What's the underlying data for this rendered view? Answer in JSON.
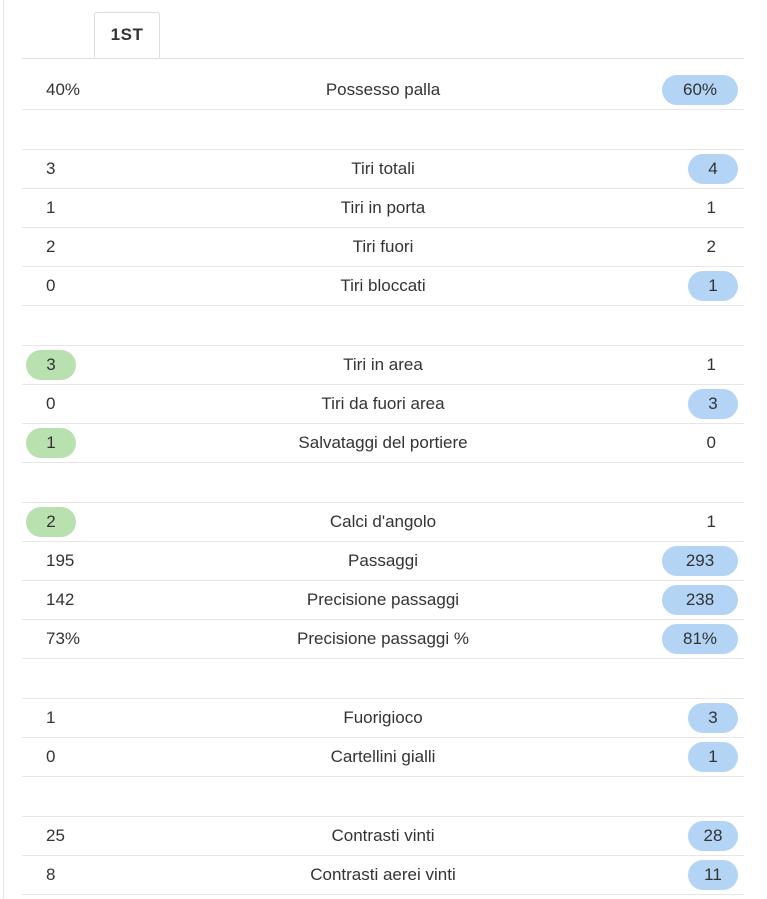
{
  "tabs": {
    "active_label": "1ST"
  },
  "colors": {
    "home_highlight": "#b9e1b0",
    "away_highlight": "#b3d4f5",
    "divider": "#e6e6e6",
    "text": "#333333"
  },
  "groups": [
    {
      "rows": [
        {
          "label": "Possesso palla",
          "home": "40%",
          "away": "60%",
          "highlight": "away"
        }
      ]
    },
    {
      "rows": [
        {
          "label": "Tiri totali",
          "home": "3",
          "away": "4",
          "highlight": "away"
        },
        {
          "label": "Tiri in porta",
          "home": "1",
          "away": "1",
          "highlight": "none"
        },
        {
          "label": "Tiri fuori",
          "home": "2",
          "away": "2",
          "highlight": "none"
        },
        {
          "label": "Tiri bloccati",
          "home": "0",
          "away": "1",
          "highlight": "away"
        }
      ]
    },
    {
      "rows": [
        {
          "label": "Tiri in area",
          "home": "3",
          "away": "1",
          "highlight": "home"
        },
        {
          "label": "Tiri da fuori area",
          "home": "0",
          "away": "3",
          "highlight": "away"
        },
        {
          "label": "Salvataggi del portiere",
          "home": "1",
          "away": "0",
          "highlight": "home"
        }
      ]
    },
    {
      "rows": [
        {
          "label": "Calci d'angolo",
          "home": "2",
          "away": "1",
          "highlight": "home"
        },
        {
          "label": "Passaggi",
          "home": "195",
          "away": "293",
          "highlight": "away"
        },
        {
          "label": "Precisione passaggi",
          "home": "142",
          "away": "238",
          "highlight": "away"
        },
        {
          "label": "Precisione passaggi %",
          "home": "73%",
          "away": "81%",
          "highlight": "away"
        }
      ]
    },
    {
      "rows": [
        {
          "label": "Fuorigioco",
          "home": "1",
          "away": "3",
          "highlight": "away"
        },
        {
          "label": "Cartellini gialli",
          "home": "0",
          "away": "1",
          "highlight": "away"
        }
      ]
    },
    {
      "rows": [
        {
          "label": "Contrasti vinti",
          "home": "25",
          "away": "28",
          "highlight": "away"
        },
        {
          "label": "Contrasti aerei vinti",
          "home": "8",
          "away": "11",
          "highlight": "away"
        }
      ]
    }
  ]
}
